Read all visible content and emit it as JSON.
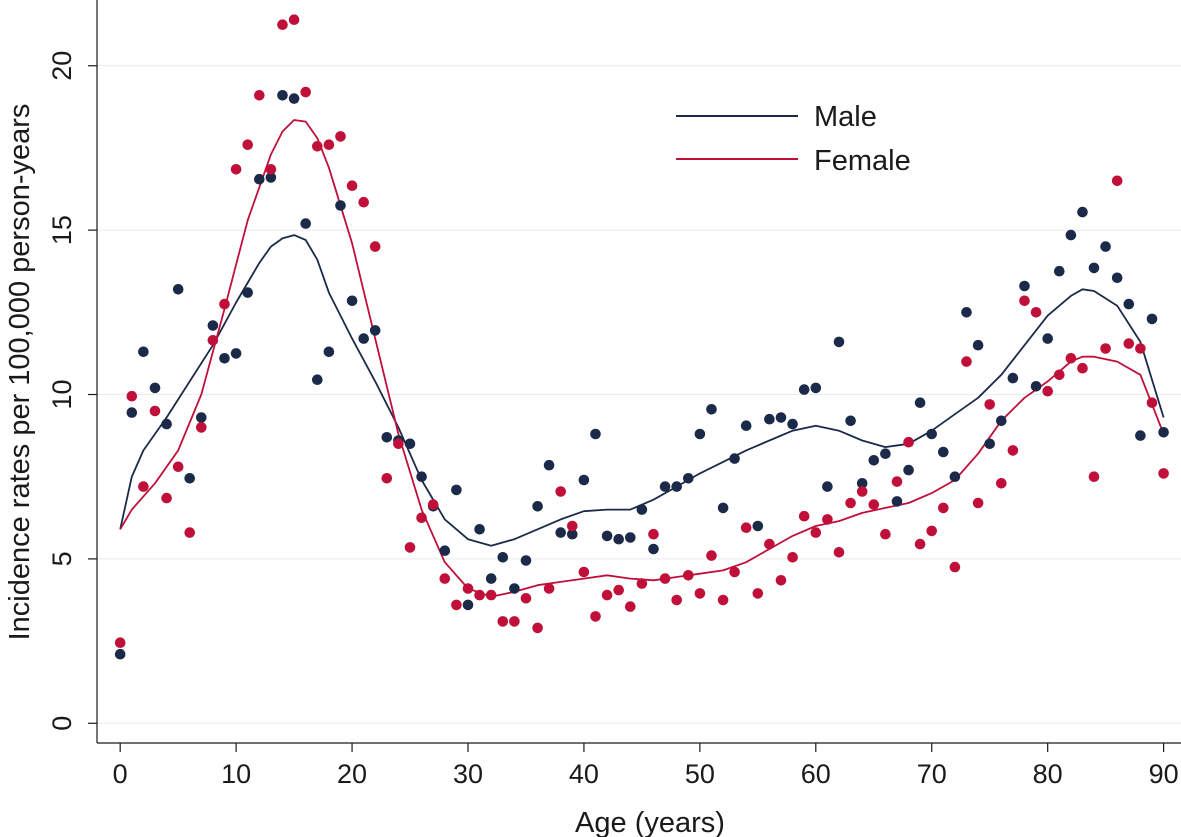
{
  "chart_data": {
    "type": "scatter",
    "title": "",
    "xlabel": "Age (years)",
    "ylabel": "Incidence rates per 100,000 person-years",
    "xlim": [
      -2,
      91.5
    ],
    "ylim": [
      -0.6,
      22
    ],
    "xticks": [
      0,
      10,
      20,
      30,
      40,
      50,
      60,
      70,
      80,
      90
    ],
    "yticks": [
      0,
      5,
      10,
      15,
      20
    ],
    "grid": true,
    "legend_position": "top-right",
    "series": [
      {
        "name": "Male",
        "color": "#1c2a4a",
        "points": [
          [
            0,
            2.1
          ],
          [
            1,
            9.45
          ],
          [
            2,
            11.3
          ],
          [
            3,
            10.2
          ],
          [
            4,
            9.1
          ],
          [
            5,
            13.2
          ],
          [
            6,
            7.45
          ],
          [
            7,
            9.3
          ],
          [
            8,
            12.1
          ],
          [
            9,
            11.1
          ],
          [
            10,
            11.25
          ],
          [
            11,
            13.1
          ],
          [
            12,
            16.55
          ],
          [
            13,
            16.6
          ],
          [
            14,
            19.1
          ],
          [
            15,
            19.0
          ],
          [
            16,
            15.2
          ],
          [
            17,
            10.45
          ],
          [
            18,
            11.3
          ],
          [
            19,
            15.75
          ],
          [
            20,
            12.85
          ],
          [
            21,
            11.7
          ],
          [
            22,
            11.95
          ],
          [
            23,
            8.7
          ],
          [
            24,
            8.6
          ],
          [
            25,
            8.5
          ],
          [
            26,
            7.5
          ],
          [
            27,
            6.6
          ],
          [
            28,
            5.25
          ],
          [
            29,
            7.1
          ],
          [
            30,
            3.6
          ],
          [
            31,
            5.9
          ],
          [
            32,
            4.4
          ],
          [
            33,
            5.05
          ],
          [
            34,
            4.1
          ],
          [
            35,
            4.95
          ],
          [
            36,
            6.6
          ],
          [
            37,
            7.85
          ],
          [
            38,
            5.8
          ],
          [
            39,
            5.75
          ],
          [
            40,
            7.4
          ],
          [
            41,
            8.8
          ],
          [
            42,
            5.7
          ],
          [
            43,
            5.6
          ],
          [
            44,
            5.65
          ],
          [
            45,
            6.5
          ],
          [
            46,
            5.3
          ],
          [
            47,
            7.2
          ],
          [
            48,
            7.2
          ],
          [
            49,
            7.45
          ],
          [
            50,
            8.8
          ],
          [
            51,
            9.55
          ],
          [
            52,
            6.55
          ],
          [
            53,
            8.05
          ],
          [
            54,
            9.05
          ],
          [
            55,
            6.0
          ],
          [
            56,
            9.25
          ],
          [
            57,
            9.3
          ],
          [
            58,
            9.1
          ],
          [
            59,
            10.15
          ],
          [
            60,
            10.2
          ],
          [
            61,
            7.2
          ],
          [
            62,
            11.6
          ],
          [
            63,
            9.2
          ],
          [
            64,
            7.3
          ],
          [
            65,
            8.0
          ],
          [
            66,
            8.2
          ],
          [
            67,
            6.75
          ],
          [
            68,
            7.7
          ],
          [
            69,
            9.75
          ],
          [
            70,
            8.8
          ],
          [
            71,
            8.25
          ],
          [
            72,
            7.5
          ],
          [
            73,
            12.5
          ],
          [
            74,
            11.5
          ],
          [
            75,
            8.5
          ],
          [
            76,
            9.2
          ],
          [
            77,
            10.5
          ],
          [
            78,
            13.3
          ],
          [
            79,
            10.25
          ],
          [
            80,
            11.7
          ],
          [
            81,
            13.75
          ],
          [
            82,
            14.85
          ],
          [
            83,
            15.55
          ],
          [
            84,
            13.85
          ],
          [
            85,
            14.5
          ],
          [
            86,
            13.55
          ],
          [
            87,
            12.75
          ],
          [
            88,
            8.75
          ],
          [
            89,
            12.3
          ],
          [
            90,
            8.85
          ]
        ],
        "fit": [
          [
            0,
            5.9
          ],
          [
            1,
            7.5
          ],
          [
            2,
            8.3
          ],
          [
            4,
            9.3
          ],
          [
            6,
            10.4
          ],
          [
            8,
            11.5
          ],
          [
            10,
            12.8
          ],
          [
            12,
            14.0
          ],
          [
            13,
            14.5
          ],
          [
            14,
            14.75
          ],
          [
            15,
            14.85
          ],
          [
            16,
            14.7
          ],
          [
            17,
            14.1
          ],
          [
            18,
            13.1
          ],
          [
            20,
            11.7
          ],
          [
            22,
            10.4
          ],
          [
            24,
            9.0
          ],
          [
            26,
            7.4
          ],
          [
            28,
            6.2
          ],
          [
            30,
            5.6
          ],
          [
            32,
            5.4
          ],
          [
            34,
            5.6
          ],
          [
            36,
            5.9
          ],
          [
            38,
            6.2
          ],
          [
            40,
            6.45
          ],
          [
            42,
            6.5
          ],
          [
            44,
            6.5
          ],
          [
            46,
            6.8
          ],
          [
            48,
            7.2
          ],
          [
            50,
            7.6
          ],
          [
            52,
            7.95
          ],
          [
            54,
            8.3
          ],
          [
            56,
            8.6
          ],
          [
            58,
            8.9
          ],
          [
            60,
            9.05
          ],
          [
            62,
            8.9
          ],
          [
            64,
            8.6
          ],
          [
            66,
            8.4
          ],
          [
            68,
            8.5
          ],
          [
            70,
            8.9
          ],
          [
            72,
            9.4
          ],
          [
            74,
            9.9
          ],
          [
            76,
            10.6
          ],
          [
            78,
            11.5
          ],
          [
            80,
            12.4
          ],
          [
            82,
            13.0
          ],
          [
            83,
            13.2
          ],
          [
            84,
            13.15
          ],
          [
            86,
            12.7
          ],
          [
            88,
            11.6
          ],
          [
            90,
            9.3
          ]
        ]
      },
      {
        "name": "Female",
        "color": "#c0103a",
        "points": [
          [
            0,
            2.45
          ],
          [
            1,
            9.95
          ],
          [
            2,
            7.2
          ],
          [
            3,
            9.5
          ],
          [
            4,
            6.85
          ],
          [
            5,
            7.8
          ],
          [
            6,
            5.8
          ],
          [
            7,
            9.0
          ],
          [
            8,
            11.65
          ],
          [
            9,
            12.75
          ],
          [
            10,
            16.85
          ],
          [
            11,
            17.6
          ],
          [
            12,
            19.1
          ],
          [
            13,
            16.85
          ],
          [
            14,
            21.25
          ],
          [
            15,
            21.4
          ],
          [
            16,
            19.2
          ],
          [
            17,
            17.55
          ],
          [
            18,
            17.6
          ],
          [
            19,
            17.85
          ],
          [
            20,
            16.35
          ],
          [
            21,
            15.85
          ],
          [
            22,
            14.5
          ],
          [
            23,
            7.45
          ],
          [
            24,
            8.5
          ],
          [
            25,
            5.35
          ],
          [
            26,
            6.25
          ],
          [
            27,
            6.65
          ],
          [
            28,
            4.4
          ],
          [
            29,
            3.6
          ],
          [
            30,
            4.1
          ],
          [
            31,
            3.9
          ],
          [
            32,
            3.9
          ],
          [
            33,
            3.1
          ],
          [
            34,
            3.1
          ],
          [
            35,
            3.8
          ],
          [
            36,
            2.9
          ],
          [
            37,
            4.1
          ],
          [
            38,
            7.05
          ],
          [
            39,
            6.0
          ],
          [
            40,
            4.6
          ],
          [
            41,
            3.25
          ],
          [
            42,
            3.9
          ],
          [
            43,
            4.05
          ],
          [
            44,
            3.55
          ],
          [
            45,
            4.25
          ],
          [
            46,
            5.75
          ],
          [
            47,
            4.4
          ],
          [
            48,
            3.75
          ],
          [
            49,
            4.5
          ],
          [
            50,
            3.95
          ],
          [
            51,
            5.1
          ],
          [
            52,
            3.75
          ],
          [
            53,
            4.6
          ],
          [
            54,
            5.95
          ],
          [
            55,
            3.95
          ],
          [
            56,
            5.45
          ],
          [
            57,
            4.35
          ],
          [
            58,
            5.05
          ],
          [
            59,
            6.3
          ],
          [
            60,
            5.8
          ],
          [
            61,
            6.2
          ],
          [
            62,
            5.2
          ],
          [
            63,
            6.7
          ],
          [
            64,
            7.05
          ],
          [
            65,
            6.65
          ],
          [
            66,
            5.75
          ],
          [
            67,
            7.35
          ],
          [
            68,
            8.55
          ],
          [
            69,
            5.45
          ],
          [
            70,
            5.85
          ],
          [
            71,
            6.55
          ],
          [
            72,
            4.75
          ],
          [
            73,
            11.0
          ],
          [
            74,
            6.7
          ],
          [
            75,
            9.7
          ],
          [
            76,
            7.3
          ],
          [
            77,
            8.3
          ],
          [
            78,
            12.85
          ],
          [
            79,
            12.5
          ],
          [
            80,
            10.1
          ],
          [
            81,
            10.6
          ],
          [
            82,
            11.1
          ],
          [
            83,
            10.8
          ],
          [
            84,
            7.5
          ],
          [
            85,
            11.4
          ],
          [
            86,
            16.5
          ],
          [
            87,
            11.55
          ],
          [
            88,
            11.4
          ],
          [
            89,
            9.75
          ],
          [
            90,
            7.6
          ]
        ],
        "fit": [
          [
            0,
            5.9
          ],
          [
            1,
            6.5
          ],
          [
            3,
            7.3
          ],
          [
            5,
            8.3
          ],
          [
            7,
            10.0
          ],
          [
            9,
            12.6
          ],
          [
            11,
            15.3
          ],
          [
            12,
            16.3
          ],
          [
            13,
            17.3
          ],
          [
            14,
            18.0
          ],
          [
            15,
            18.35
          ],
          [
            16,
            18.3
          ],
          [
            17,
            17.8
          ],
          [
            18,
            16.9
          ],
          [
            20,
            14.6
          ],
          [
            22,
            11.7
          ],
          [
            24,
            8.8
          ],
          [
            26,
            6.5
          ],
          [
            28,
            4.9
          ],
          [
            30,
            4.1
          ],
          [
            32,
            3.85
          ],
          [
            34,
            4.0
          ],
          [
            36,
            4.2
          ],
          [
            38,
            4.3
          ],
          [
            40,
            4.4
          ],
          [
            42,
            4.5
          ],
          [
            44,
            4.4
          ],
          [
            46,
            4.35
          ],
          [
            48,
            4.45
          ],
          [
            50,
            4.55
          ],
          [
            52,
            4.65
          ],
          [
            54,
            4.9
          ],
          [
            56,
            5.3
          ],
          [
            58,
            5.7
          ],
          [
            60,
            6.0
          ],
          [
            62,
            6.15
          ],
          [
            64,
            6.4
          ],
          [
            66,
            6.55
          ],
          [
            68,
            6.7
          ],
          [
            70,
            7.0
          ],
          [
            72,
            7.4
          ],
          [
            74,
            8.2
          ],
          [
            76,
            9.2
          ],
          [
            78,
            9.9
          ],
          [
            80,
            10.4
          ],
          [
            82,
            11.0
          ],
          [
            83,
            11.15
          ],
          [
            84,
            11.15
          ],
          [
            86,
            11.0
          ],
          [
            88,
            10.6
          ],
          [
            90,
            8.8
          ]
        ]
      }
    ]
  }
}
